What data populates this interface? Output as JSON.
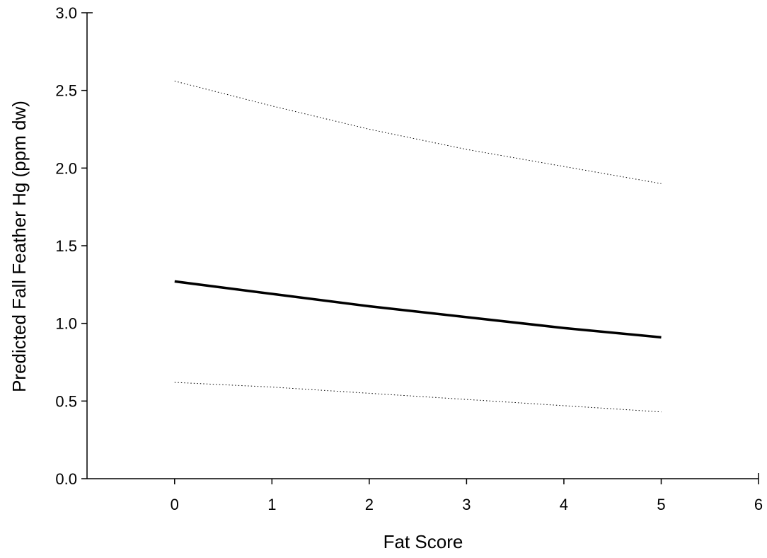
{
  "chart_data": {
    "type": "line",
    "title": "",
    "xlabel": "Fat Score",
    "ylabel": "Predicted Fall Feather Hg (ppm dw)",
    "xlim": [
      -0.9,
      6
    ],
    "ylim": [
      0,
      3.0
    ],
    "x_ticks": [
      0,
      1,
      2,
      3,
      4,
      5,
      6
    ],
    "x_tick_labels": [
      "0",
      "1",
      "2",
      "3",
      "4",
      "5",
      "6"
    ],
    "y_ticks": [
      0,
      0.5,
      1.0,
      1.5,
      2.0,
      2.5,
      3.0
    ],
    "y_tick_labels": [
      "0.0",
      "0.5",
      "1.0",
      "1.5",
      "2.0",
      "2.5",
      "3.0"
    ],
    "grid": false,
    "series": [
      {
        "x": [
          0,
          1,
          2,
          3,
          4,
          5
        ],
        "y": [
          1.27,
          1.19,
          1.11,
          1.04,
          0.97,
          0.91
        ],
        "style": "solid",
        "color": "#000000"
      },
      {
        "x": [
          0,
          1,
          2,
          3,
          4,
          5
        ],
        "y": [
          2.56,
          2.4,
          2.25,
          2.12,
          2.01,
          1.9
        ],
        "style": "dotted",
        "color": "#000000"
      },
      {
        "x": [
          0,
          1,
          2,
          3,
          4,
          5
        ],
        "y": [
          0.62,
          0.59,
          0.55,
          0.51,
          0.47,
          0.43
        ],
        "style": "dotted",
        "color": "#000000"
      }
    ]
  }
}
